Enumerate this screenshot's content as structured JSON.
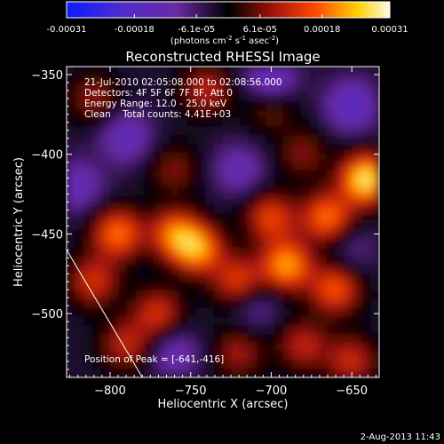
{
  "colorbar": {
    "tick_labels": [
      "-0.00031",
      "-0.00018",
      "-6.1e-05",
      "6.1e-05",
      "0.00018",
      "0.00031"
    ],
    "unit_main": "(photons cm",
    "unit_exp1": "-2",
    "unit_mid": " s",
    "unit_exp2": "-1",
    "unit_asec": " asec",
    "unit_exp3": "-2",
    "unit_end": ")",
    "range": [
      -0.00031,
      0.00031
    ],
    "colors": [
      "#0a1cff",
      "#4b2bd0",
      "#6a2aa6",
      "#000000",
      "#a3140a",
      "#ff4a00",
      "#ffcf00",
      "#fffbe6"
    ]
  },
  "plot": {
    "title": "Reconstructed RHESSI Image",
    "info_lines": [
      "21-Jul-2010 02:05:08.000 to 02:08:56.000",
      "Detectors: 4F 5F 6F 7F 8F, Att 0",
      "Energy Range: 12.0 - 25.0 keV",
      "Clean    Total counts: 4.41E+03"
    ],
    "peak_label": "Position of Peak = [-641,-416]",
    "date_stamp": "2-Aug-2013 11:43"
  },
  "chart_data": {
    "type": "heatmap",
    "title": "Reconstructed RHESSI Image",
    "xlabel": "Heliocentric X (arcsec)",
    "ylabel": "Heliocentric Y (arcsec)",
    "xlim": [
      -827,
      -633
    ],
    "ylim": [
      -540,
      -345
    ],
    "x_ticks": [
      -800,
      -750,
      -700,
      -650
    ],
    "y_ticks": [
      -350,
      -400,
      -450,
      -500
    ],
    "x_tick_labels": [
      "−800",
      "−750",
      "−700",
      "−650"
    ],
    "y_tick_labels": [
      "−350",
      "−400",
      "−450",
      "−500"
    ],
    "peak": [
      -641,
      -416
    ],
    "limb_line": [
      [
        -827,
        -460
      ],
      [
        -780,
        -540
      ]
    ],
    "grid": false,
    "sources": [
      {
        "x": -641,
        "y": -416,
        "value": 0.00031
      },
      {
        "x": -665,
        "y": -440,
        "value": 0.00022
      },
      {
        "x": -690,
        "y": -470,
        "value": 0.00025
      },
      {
        "x": -660,
        "y": -485,
        "value": 0.0002
      },
      {
        "x": -700,
        "y": -440,
        "value": 0.00018
      },
      {
        "x": -720,
        "y": -480,
        "value": 0.00018
      },
      {
        "x": -745,
        "y": -460,
        "value": 0.00023
      },
      {
        "x": -760,
        "y": -450,
        "value": 0.0002
      },
      {
        "x": -770,
        "y": -500,
        "value": 0.00016
      },
      {
        "x": -795,
        "y": -450,
        "value": 0.00022
      },
      {
        "x": -810,
        "y": -480,
        "value": 0.00016
      },
      {
        "x": -790,
        "y": -520,
        "value": 0.00014
      },
      {
        "x": -650,
        "y": -530,
        "value": 0.00015
      },
      {
        "x": -680,
        "y": -520,
        "value": 0.00014
      },
      {
        "x": -720,
        "y": -525,
        "value": 0.00012
      },
      {
        "x": -740,
        "y": -360,
        "value": 0.00014
      },
      {
        "x": -700,
        "y": -370,
        "value": 0.00011
      },
      {
        "x": -760,
        "y": -410,
        "value": 0.0001
      },
      {
        "x": -810,
        "y": -365,
        "value": 0.00011
      },
      {
        "x": -680,
        "y": -400,
        "value": 0.0001
      },
      {
        "x": -790,
        "y": -390,
        "value": -0.00012
      },
      {
        "x": -700,
        "y": -355,
        "value": -0.00015
      },
      {
        "x": -720,
        "y": -410,
        "value": -0.0001
      },
      {
        "x": -650,
        "y": -370,
        "value": -0.00014
      },
      {
        "x": -820,
        "y": -420,
        "value": -0.00011
      },
      {
        "x": -760,
        "y": -525,
        "value": -0.0001
      },
      {
        "x": -710,
        "y": -495,
        "value": -8e-05
      },
      {
        "x": -650,
        "y": -460,
        "value": -6e-05
      }
    ]
  }
}
